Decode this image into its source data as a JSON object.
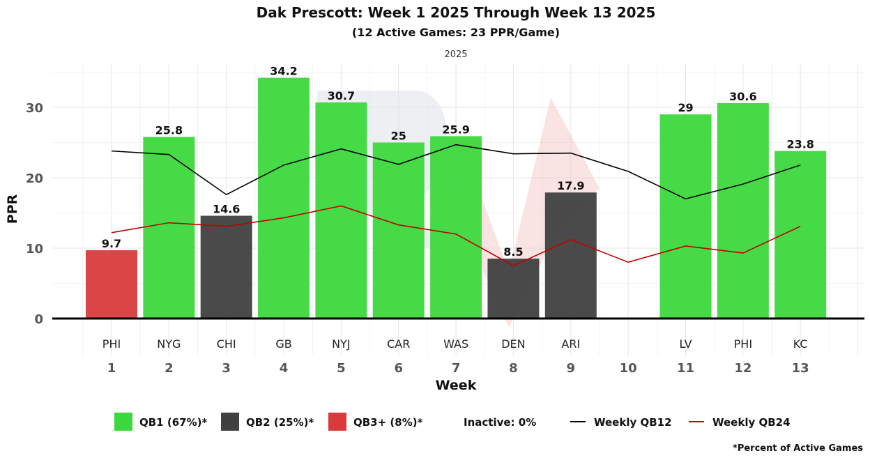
{
  "chart_data": {
    "type": "bar",
    "title": "Dak Prescott: Week 1 2025 Through Week 13 2025",
    "subtitle": "(12 Active Games: 23 PPR/Game)",
    "facet_label": "2025",
    "xlabel": "Week",
    "ylabel": "PPR",
    "ylim": [
      0,
      36
    ],
    "yticks": [
      0,
      10,
      20,
      30
    ],
    "weeks": [
      1,
      2,
      3,
      4,
      5,
      6,
      7,
      8,
      9,
      10,
      11,
      12,
      13
    ],
    "opponents": [
      "PHI",
      "NYG",
      "CHI",
      "GB",
      "NYJ",
      "CAR",
      "WAS",
      "DEN",
      "ARI",
      "",
      "LV",
      "PHI",
      "KC"
    ],
    "values": [
      9.7,
      25.8,
      14.6,
      34.2,
      30.7,
      25,
      25.9,
      8.5,
      17.9,
      null,
      29,
      30.6,
      23.8
    ],
    "value_labels": [
      "9.7",
      "25.8",
      "14.6",
      "34.2",
      "30.7",
      "25",
      "25.9",
      "8.5",
      "17.9",
      "",
      "29",
      "30.6",
      "23.8"
    ],
    "tiers": [
      "QB3+",
      "QB1",
      "QB2",
      "QB1",
      "QB1",
      "QB1",
      "QB1",
      "QB2",
      "QB2",
      "",
      "QB1",
      "QB1",
      "QB1"
    ],
    "series": [
      {
        "name": "Weekly QB12",
        "color": "#000000",
        "values": [
          23.8,
          23.3,
          17.6,
          21.8,
          24.1,
          21.9,
          24.7,
          23.4,
          23.5,
          20.9,
          17.0,
          19.1,
          21.8
        ]
      },
      {
        "name": "Weekly QB24",
        "color": "#c00000",
        "values": [
          12.2,
          13.6,
          13.1,
          14.3,
          16.0,
          13.3,
          12.0,
          7.5,
          11.2,
          8.0,
          10.3,
          9.3,
          13.1
        ]
      }
    ],
    "tier_colors": {
      "QB1": "#3dd83d",
      "QB2": "#404040",
      "QB3+": "#d93b3b"
    },
    "legend_position": "bottom",
    "legend": [
      {
        "label": "QB1 (67%)*",
        "kind": "box",
        "color": "#3dd83d"
      },
      {
        "label": "QB2 (25%)*",
        "kind": "box",
        "color": "#404040"
      },
      {
        "label": "QB3+ (8%)*",
        "kind": "box",
        "color": "#d93b3b"
      },
      {
        "label": "Inactive: 0%",
        "kind": "text"
      },
      {
        "label": "Weekly QB12",
        "kind": "line",
        "color": "#000000"
      },
      {
        "label": "Weekly QB24",
        "kind": "line",
        "color": "#c00000"
      }
    ],
    "footnote": "*Percent of Active Games",
    "grid": true
  }
}
